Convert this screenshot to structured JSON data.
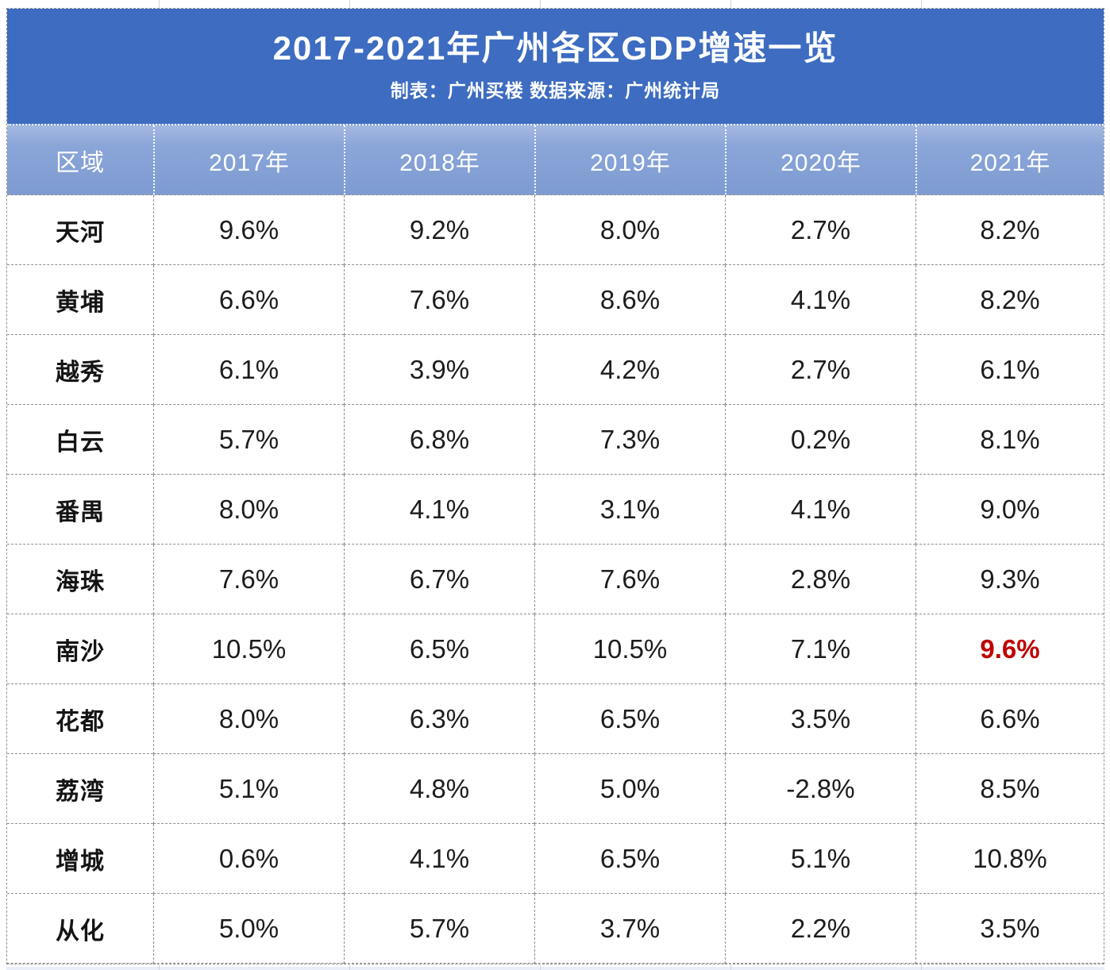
{
  "title": {
    "text": "2017-2021年广州各区GDP增速一览",
    "subtitle": "制表：广州买楼 数据来源：广州统计局"
  },
  "table": {
    "columns": [
      "区域",
      "2017年",
      "2018年",
      "2019年",
      "2020年",
      "2021年"
    ],
    "rows": [
      {
        "region": "天河",
        "values": [
          "9.6%",
          "9.2%",
          "8.0%",
          "2.7%",
          "8.2%"
        ]
      },
      {
        "region": "黄埔",
        "values": [
          "6.6%",
          "7.6%",
          "8.6%",
          "4.1%",
          "8.2%"
        ]
      },
      {
        "region": "越秀",
        "values": [
          "6.1%",
          "3.9%",
          "4.2%",
          "2.7%",
          "6.1%"
        ]
      },
      {
        "region": "白云",
        "values": [
          "5.7%",
          "6.8%",
          "7.3%",
          "0.2%",
          "8.1%"
        ]
      },
      {
        "region": "番禺",
        "values": [
          "8.0%",
          "4.1%",
          "3.1%",
          "4.1%",
          "9.0%"
        ]
      },
      {
        "region": "海珠",
        "values": [
          "7.6%",
          "6.7%",
          "7.6%",
          "2.8%",
          "9.3%"
        ]
      },
      {
        "region": "南沙",
        "values": [
          "10.5%",
          "6.5%",
          "10.5%",
          "7.1%",
          "9.6%"
        ],
        "highlight_col": 4
      },
      {
        "region": "花都",
        "values": [
          "8.0%",
          "6.3%",
          "6.5%",
          "3.5%",
          "6.6%"
        ]
      },
      {
        "region": "荔湾",
        "values": [
          "5.1%",
          "4.8%",
          "5.0%",
          "-2.8%",
          "8.5%"
        ]
      },
      {
        "region": "增城",
        "values": [
          "0.6%",
          "4.1%",
          "6.5%",
          "5.1%",
          "10.8%"
        ]
      },
      {
        "region": "从化",
        "values": [
          "5.0%",
          "5.7%",
          "3.7%",
          "2.2%",
          "3.5%"
        ]
      }
    ],
    "highlight": {
      "region": "南沙",
      "column": "2021年",
      "value": "9.6%",
      "color": "#c00000"
    }
  },
  "chart_data": {
    "type": "table",
    "title": "2017-2021年广州各区GDP增速一览",
    "subtitle": "制表：广州买楼 数据来源：广州统计局",
    "categories": [
      "2017年",
      "2018年",
      "2019年",
      "2020年",
      "2021年"
    ],
    "series": [
      {
        "name": "天河",
        "values": [
          9.6,
          9.2,
          8.0,
          2.7,
          8.2
        ]
      },
      {
        "name": "黄埔",
        "values": [
          6.6,
          7.6,
          8.6,
          4.1,
          8.2
        ]
      },
      {
        "name": "越秀",
        "values": [
          6.1,
          3.9,
          4.2,
          2.7,
          6.1
        ]
      },
      {
        "name": "白云",
        "values": [
          5.7,
          6.8,
          7.3,
          0.2,
          8.1
        ]
      },
      {
        "name": "番禺",
        "values": [
          8.0,
          4.1,
          3.1,
          4.1,
          9.0
        ]
      },
      {
        "name": "海珠",
        "values": [
          7.6,
          6.7,
          7.6,
          2.8,
          9.3
        ]
      },
      {
        "name": "南沙",
        "values": [
          10.5,
          6.5,
          10.5,
          7.1,
          9.6
        ]
      },
      {
        "name": "花都",
        "values": [
          8.0,
          6.3,
          6.5,
          3.5,
          6.6
        ]
      },
      {
        "name": "荔湾",
        "values": [
          5.1,
          4.8,
          5.0,
          -2.8,
          8.5
        ]
      },
      {
        "name": "增城",
        "values": [
          0.6,
          4.1,
          6.5,
          5.1,
          10.8
        ]
      },
      {
        "name": "从化",
        "values": [
          5.0,
          5.7,
          3.7,
          2.2,
          3.5
        ]
      }
    ],
    "value_unit": "%",
    "highlighted_value": {
      "series": "南沙",
      "category": "2021年",
      "value": 9.6
    }
  },
  "colors": {
    "title_bg": "#3d6cc1",
    "header_bg_top": "#a5b9e1",
    "header_bg_bottom": "#7e9bd2",
    "highlight_red": "#c00000",
    "border_gray": "#8f8f8f",
    "text_dark": "#1c1c1c"
  }
}
